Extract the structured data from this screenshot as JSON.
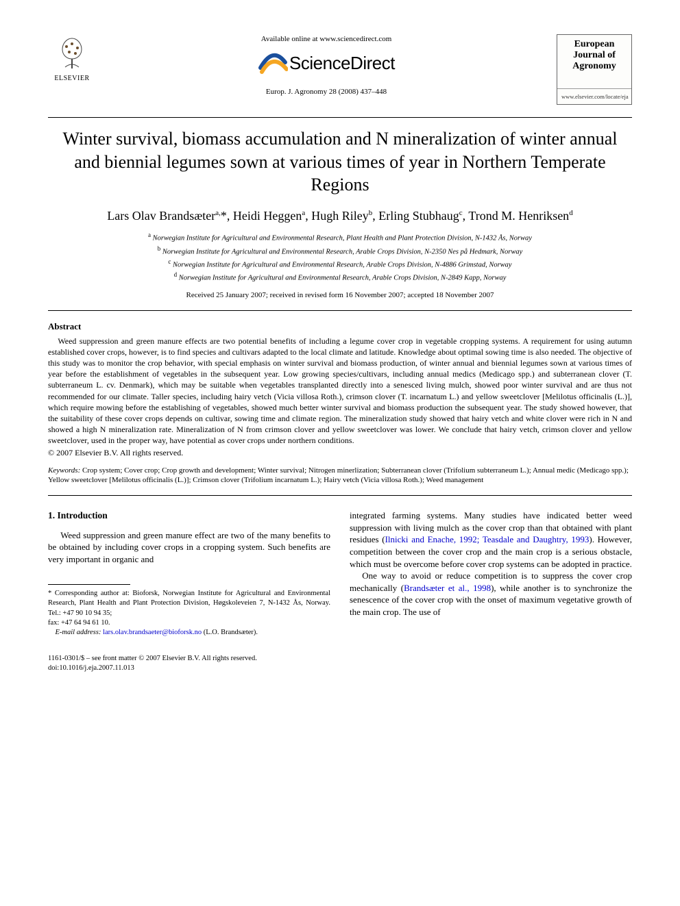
{
  "header": {
    "elsevier_label": "ELSEVIER",
    "available_text": "Available online at www.sciencedirect.com",
    "sd_name": "ScienceDirect",
    "journal_ref": "Europ. J. Agronomy 28 (2008) 437–448",
    "cover_title": "European Journal of Agronomy",
    "cover_url": "www.elsevier.com/locate/eja"
  },
  "title": "Winter survival, biomass accumulation and N mineralization of winter annual and biennial legumes sown at various times of year in Northern Temperate Regions",
  "authors_html": "Lars Olav Brandsæter<sup>a,</sup>*, Heidi Heggen<sup>a</sup>, Hugh Riley<sup>b</sup>, Erling Stubhaug<sup>c</sup>, Trond M. Henriksen<sup>d</sup>",
  "affiliations": [
    {
      "sup": "a",
      "text": "Norwegian Institute for Agricultural and Environmental Research, Plant Health and Plant Protection Division, N-1432 Ås, Norway"
    },
    {
      "sup": "b",
      "text": "Norwegian Institute for Agricultural and Environmental Research, Arable Crops Division, N-2350 Nes på Hedmark, Norway"
    },
    {
      "sup": "c",
      "text": "Norwegian Institute for Agricultural and Environmental Research, Arable Crops Division, N-4886 Grimstad, Norway"
    },
    {
      "sup": "d",
      "text": "Norwegian Institute for Agricultural and Environmental Research, Arable Crops Division, N-2849 Kapp, Norway"
    }
  ],
  "dates": "Received 25 January 2007; received in revised form 16 November 2007; accepted 18 November 2007",
  "abstract": {
    "heading": "Abstract",
    "body": "Weed suppression and green manure effects are two potential benefits of including a legume cover crop in vegetable cropping systems. A requirement for using autumn established cover crops, however, is to find species and cultivars adapted to the local climate and latitude. Knowledge about optimal sowing time is also needed. The objective of this study was to monitor the crop behavior, with special emphasis on winter survival and biomass production, of winter annual and biennial legumes sown at various times of year before the establishment of vegetables in the subsequent year. Low growing species/cultivars, including annual medics (Medicago spp.) and subterranean clover (T. subterraneum L. cv. Denmark), which may be suitable when vegetables transplanted directly into a senesced living mulch, showed poor winter survival and are thus not recommended for our climate. Taller species, including hairy vetch (Vicia villosa Roth.), crimson clover (T. incarnatum L.) and yellow sweetclover [Melilotus officinalis (L.)], which require mowing before the establishing of vegetables, showed much better winter survival and biomass production the subsequent year. The study showed however, that the suitability of these cover crops depends on cultivar, sowing time and climate region. The mineralization study showed that hairy vetch and white clover were rich in N and showed a high N mineralization rate. Mineralization of N from crimson clover and yellow sweetclover was lower. We conclude that hairy vetch, crimson clover and yellow sweetclover, used in the proper way, have potential as cover crops under northern conditions.",
    "copyright": "© 2007 Elsevier B.V. All rights reserved."
  },
  "keywords": {
    "label": "Keywords:",
    "text": "Crop system; Cover crop; Crop growth and development; Winter survival; Nitrogen minerlization; Subterranean clover (Trifolium subterraneum L.); Annual medic (Medicago spp.); Yellow sweetclover [Melilotus officinalis (L.)]; Crimson clover (Trifolium incarnatum L.); Hairy vetch (Vicia villosa Roth.); Weed management"
  },
  "intro": {
    "heading": "1.  Introduction",
    "left_p1": "Weed suppression and green manure effect are two of the many benefits to be obtained by including cover crops in a cropping system. Such benefits are very important in organic and",
    "right_p1_pre": "integrated farming systems. Many studies have indicated better weed suppression with living mulch as the cover crop than that obtained with plant residues (",
    "right_cite1": "Ilnicki and Enache, 1992; Teasdale and Daughtry, 1993",
    "right_p1_post": "). However, competition between the cover crop and the main crop is a serious obstacle, which must be overcome before cover crop systems can be adopted in practice.",
    "right_p2_pre": "One way to avoid or reduce competition is to suppress the cover crop mechanically (",
    "right_cite2": "Brandsæter et al., 1998",
    "right_p2_post": "), while another is to synchronize the senescence of the cover crop with the onset of maximum vegetative growth of the main crop. The use of"
  },
  "footnote": {
    "corr": "* Corresponding author at: Bioforsk, Norwegian Institute for Agricultural and Environmental Research, Plant Health and Plant Protection Division, Høgskoleveien 7, N-1432 Ås, Norway. Tel.: +47 90 10 94 35;",
    "fax": "fax: +47 64 94 61 10.",
    "email_label": "E-mail address:",
    "email": "lars.olav.brandsaeter@bioforsk.no",
    "email_suffix": "(L.O. Brandsæter)."
  },
  "footer": {
    "issn": "1161-0301/$ – see front matter © 2007 Elsevier B.V. All rights reserved.",
    "doi": "doi:10.1016/j.eja.2007.11.013"
  },
  "colors": {
    "text": "#000000",
    "link": "#0000cc",
    "background": "#ffffff",
    "elsevier_orange": "#e87722",
    "sd_swoosh_blue": "#1b4f9c",
    "sd_swoosh_orange": "#f5a623"
  }
}
